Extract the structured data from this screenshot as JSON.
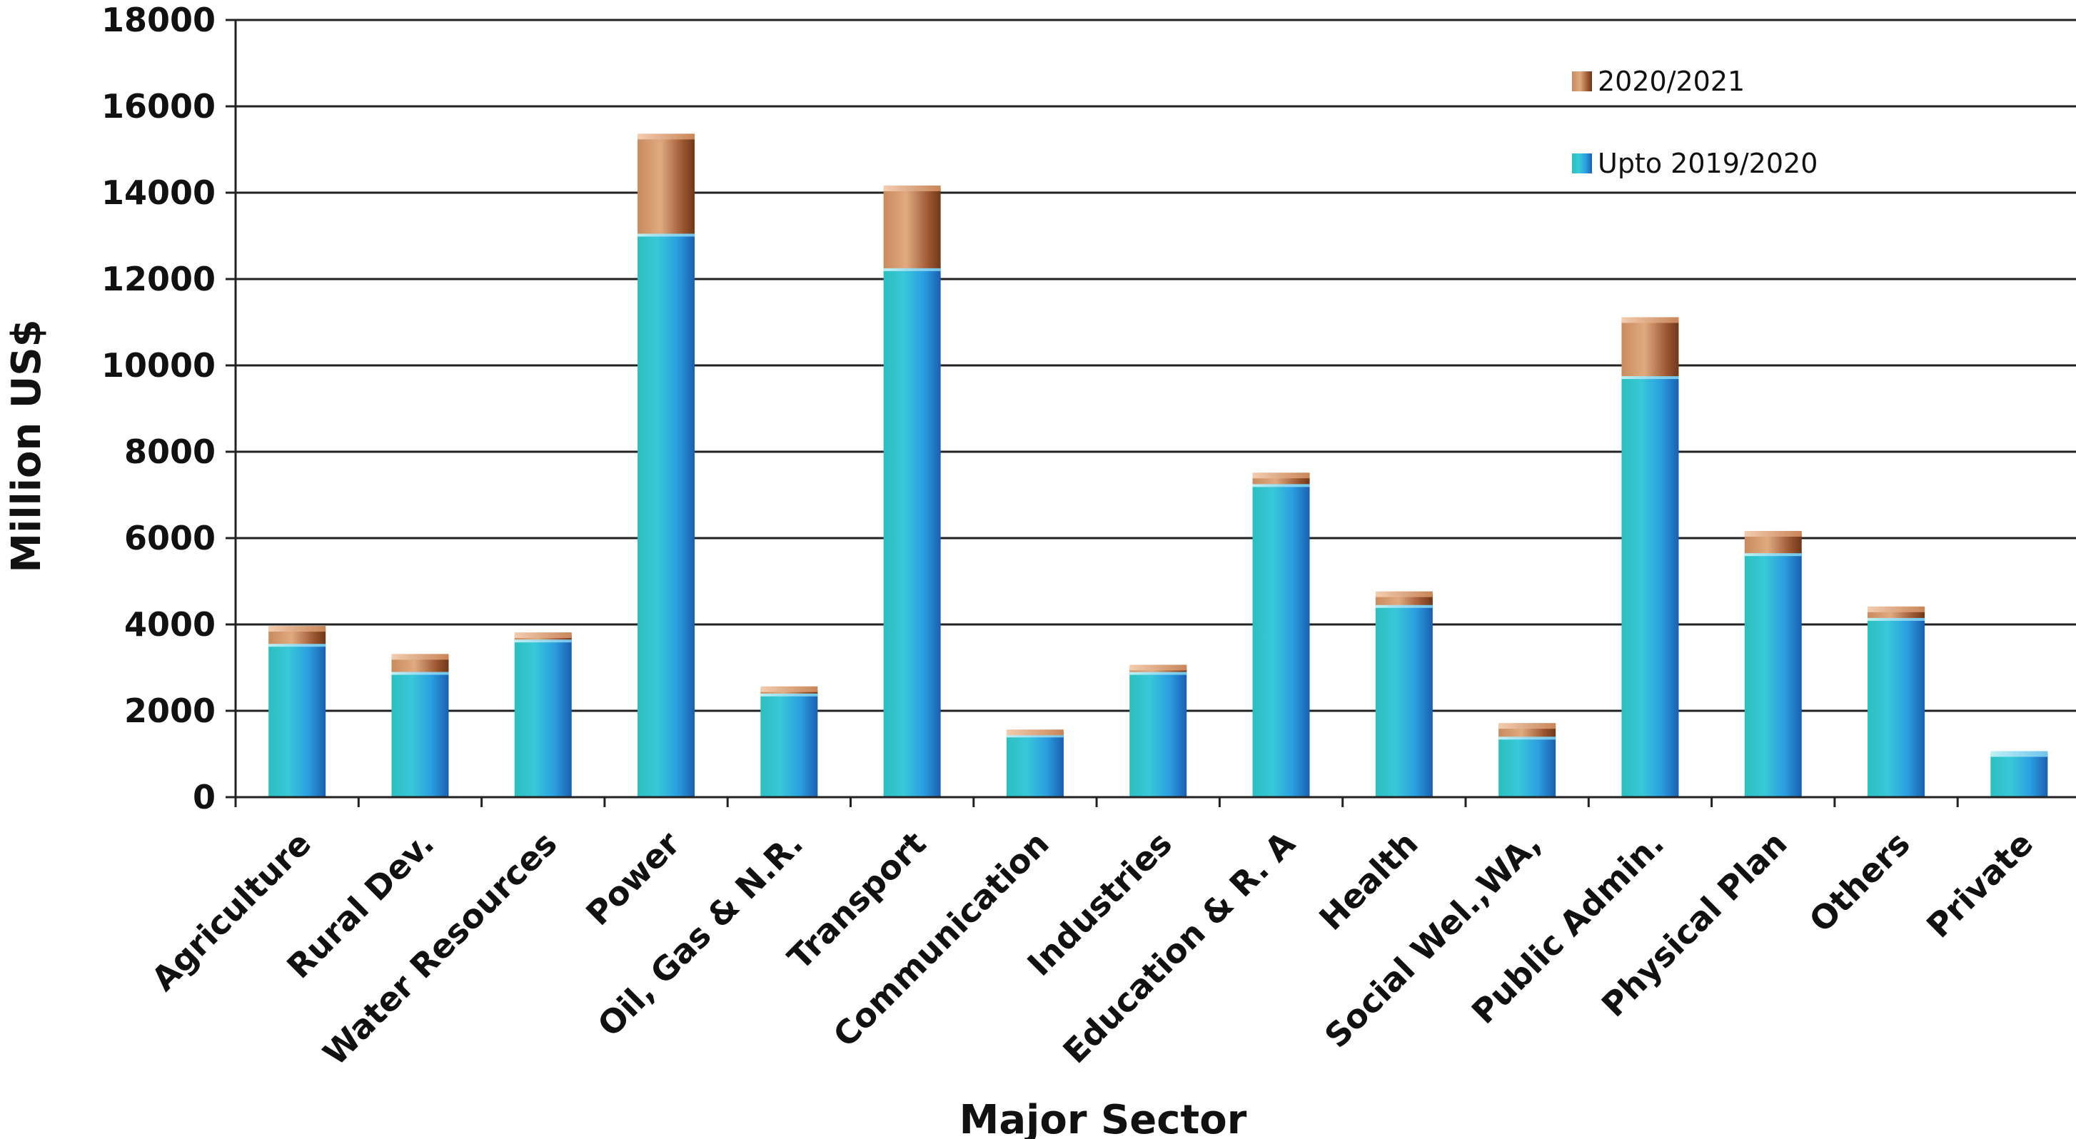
{
  "chart_data": {
    "type": "bar",
    "stacked": true,
    "title": "",
    "xlabel": "Major Sector",
    "ylabel": "Million US$",
    "ylim": [
      0,
      18000
    ],
    "yticks": [
      0,
      2000,
      4000,
      6000,
      8000,
      10000,
      12000,
      14000,
      16000,
      18000
    ],
    "grid": true,
    "legend_position": "top-right",
    "categories": [
      "Agriculture",
      "Rural Dev.",
      "Water Resources",
      "Power",
      "Oil, Gas & N.R.",
      "Transport",
      "Communication",
      "Industries",
      "Education & R. A",
      "Health",
      "Social Wel.,WA,",
      "Public Admin.",
      "Physical Plan",
      "Others",
      "Private"
    ],
    "series": [
      {
        "name": "Upto 2019/2020",
        "color": "#1f8fd4",
        "values": [
          3550,
          2900,
          3650,
          13050,
          2400,
          12250,
          1450,
          2900,
          7250,
          4450,
          1400,
          9750,
          5650,
          4150,
          1000
        ]
      },
      {
        "name": "2020/2021",
        "color": "#a8613a",
        "values": [
          350,
          350,
          100,
          2250,
          100,
          1850,
          50,
          100,
          200,
          250,
          250,
          1300,
          450,
          200,
          0
        ]
      }
    ],
    "legend": [
      "2020/2021",
      "Upto 2019/2020"
    ]
  }
}
